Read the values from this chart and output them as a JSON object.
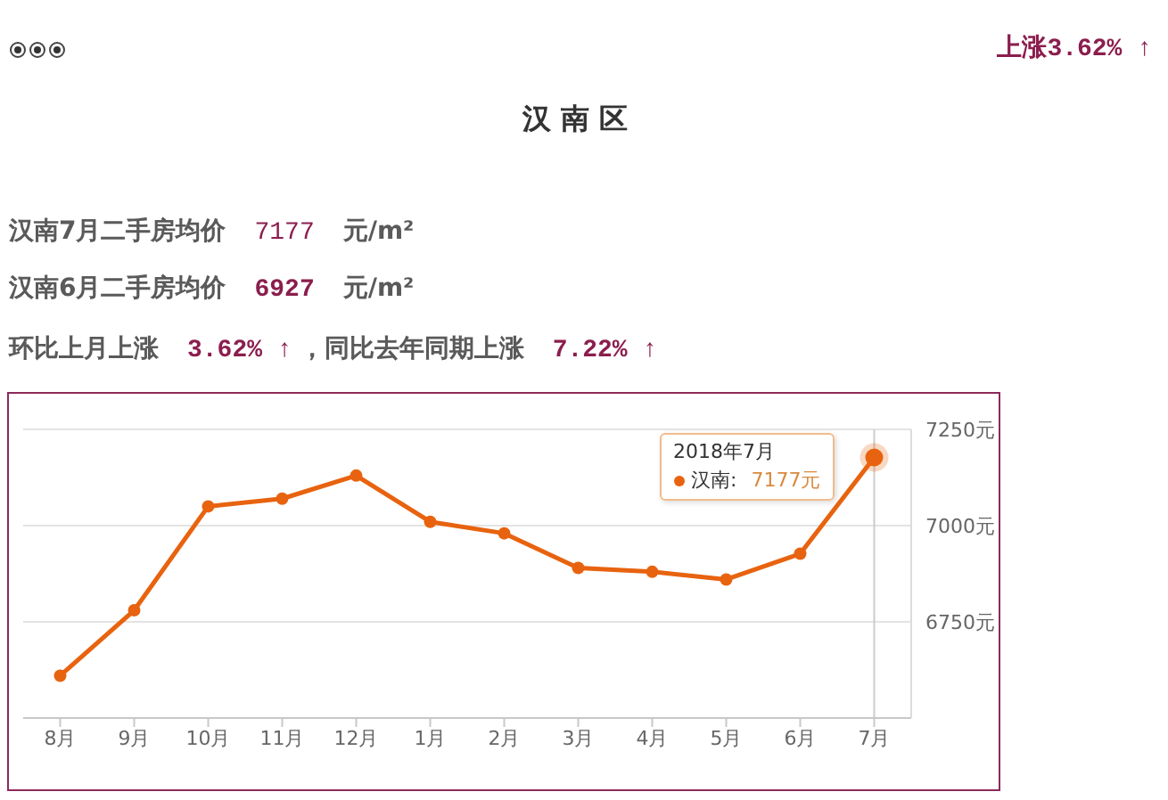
{
  "chart_data": {
    "type": "line",
    "title": "汉 南 区",
    "annotations": [
      "上涨3.62% ↑",
      "汉南7月二手房均价",
      "7177",
      "元/m²",
      "汉南6月二手房均价",
      "6927",
      "元/m²",
      "环比上月上涨",
      "3.62% ↑",
      "，同比去年同期上涨",
      "7.22% ↑",
      "2018年7月",
      "7177元"
    ],
    "categories": [
      "8月",
      "9月",
      "10月",
      "11月",
      "12月",
      "1月",
      "2月",
      "3月",
      "4月",
      "5月",
      "6月",
      "7月"
    ],
    "series": [
      {
        "name": "汉南:",
        "color": "#e8630f",
        "values": [
          6610,
          6780,
          7050,
          7070,
          7130,
          7010,
          6980,
          6890,
          6880,
          6860,
          6927,
          7177
        ]
      }
    ],
    "ylim": [
      6500,
      7250
    ],
    "yticks": [
      {
        "value": 6750,
        "label": "6750元"
      },
      {
        "value": 7000,
        "label": "7000元"
      },
      {
        "value": 7250,
        "label": "7250元"
      }
    ],
    "grid": "y",
    "legend": "top right",
    "marker": "circle",
    "line_style": "solid",
    "ref_lines": [
      {
        "axis": "x",
        "value": "7月",
        "color": "#cccccc"
      }
    ]
  }
}
